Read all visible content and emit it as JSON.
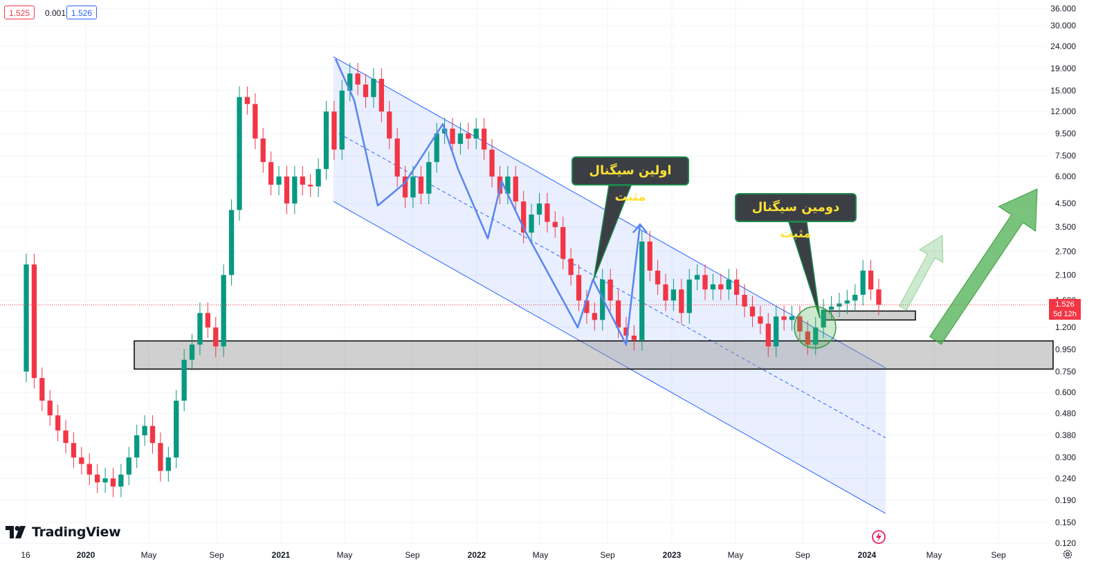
{
  "header": {
    "close_value": "1.525",
    "spread_value": "0.001",
    "ask_value": "1.526"
  },
  "price_tag": {
    "price": "1.526",
    "countdown": "5d 12h"
  },
  "branding": {
    "name": "TradingView"
  },
  "annotations": {
    "first_signal": "اولین سیگنال مثبت",
    "second_signal": "دومین سیگنال مثبت"
  },
  "colors": {
    "up": "#089981",
    "down": "#f23645",
    "channel": "#2962ff",
    "zone": "#b0b0b0",
    "callout_bg": "#3b3f45",
    "callout_text": "#ffe033",
    "arrow_green": "#4caf50"
  },
  "chart_data": {
    "type": "candlestick",
    "scale": "log",
    "current_price": 1.526,
    "y_ticks": [
      "36.000",
      "30.000",
      "24.000",
      "19.000",
      "15.000",
      "12.000",
      "9.500",
      "7.500",
      "6.000",
      "4.500",
      "3.500",
      "2.700",
      "2.100",
      "1.600",
      "1.200",
      "0.950",
      "0.750",
      "0.600",
      "0.480",
      "0.380",
      "0.300",
      "0.240",
      "0.190",
      "0.150",
      "0.120"
    ],
    "x_ticks": [
      {
        "label": "16",
        "bold": false
      },
      {
        "label": "2020",
        "bold": true
      },
      {
        "label": "May",
        "bold": false
      },
      {
        "label": "Sep",
        "bold": false
      },
      {
        "label": "2021",
        "bold": true
      },
      {
        "label": "May",
        "bold": false
      },
      {
        "label": "Sep",
        "bold": false
      },
      {
        "label": "2022",
        "bold": true
      },
      {
        "label": "May",
        "bold": false
      },
      {
        "label": "Sep",
        "bold": false
      },
      {
        "label": "2023",
        "bold": true
      },
      {
        "label": "May",
        "bold": false
      },
      {
        "label": "Sep",
        "bold": false
      },
      {
        "label": "2024",
        "bold": true
      },
      {
        "label": "May",
        "bold": false
      },
      {
        "label": "Sep",
        "bold": false
      }
    ],
    "support_zones": [
      {
        "low": 0.77,
        "high": 1.04
      },
      {
        "low": 1.3,
        "high": 1.43
      }
    ],
    "channel": {
      "upper_start": 21.5,
      "upper_end": 0.78,
      "lower_start": 4.6,
      "lower_end": 0.165,
      "middle_start": 9.8,
      "middle_end": 0.37
    },
    "zigzag": [
      21.0,
      13.5,
      4.4,
      5.6,
      10.5,
      6.5,
      3.1,
      5.7,
      3.4,
      1.2,
      2.0,
      1.0,
      3.6
    ],
    "candle_closes": [
      2.35,
      0.7,
      0.55,
      0.47,
      0.4,
      0.35,
      0.3,
      0.28,
      0.25,
      0.23,
      0.24,
      0.22,
      0.25,
      0.3,
      0.38,
      0.42,
      0.35,
      0.26,
      0.3,
      0.55,
      0.85,
      1.0,
      1.4,
      1.2,
      0.98,
      2.1,
      4.2,
      14,
      13,
      9,
      7,
      5.5,
      6,
      4.5,
      6,
      5.5,
      5.4,
      6.5,
      12,
      8,
      15,
      18,
      16,
      14,
      17,
      12,
      9,
      6,
      4.8,
      6,
      5,
      7,
      9.5,
      10,
      8.5,
      9.5,
      9,
      10,
      8,
      6,
      5,
      6,
      4.6,
      3.3,
      4,
      4.5,
      3.7,
      3.5,
      2.5,
      2.1,
      1.6,
      1.4,
      1.3,
      2.0,
      1.6,
      1.2,
      1.1,
      1.05,
      3.0,
      2.2,
      1.9,
      1.6,
      1.8,
      1.4,
      2.0,
      2.1,
      1.8,
      1.9,
      1.8,
      2.0,
      1.7,
      1.5,
      1.35,
      1.25,
      0.98,
      1.35,
      1.3,
      1.35,
      1.15,
      1.0,
      1.2,
      1.45,
      1.5,
      1.55,
      1.6,
      1.7,
      2.2,
      1.8,
      1.53
    ]
  }
}
